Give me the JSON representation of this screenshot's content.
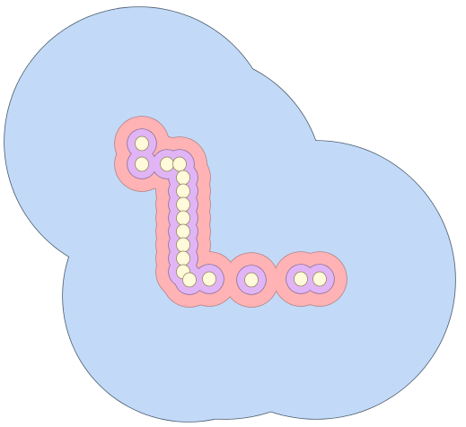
{
  "colors": {
    "background": "#ffffff",
    "outer_fill": "#c2daf8",
    "outer_stroke": "#4a5a6a",
    "pink_fill": "#ffb3b5",
    "pink_stroke": "#b48083",
    "lavender_fill": "#e1b5f5",
    "lavender_stroke": "#8a6f9a",
    "cream_fill": "#fffad9",
    "cream_stroke": "#8a8050"
  }
}
